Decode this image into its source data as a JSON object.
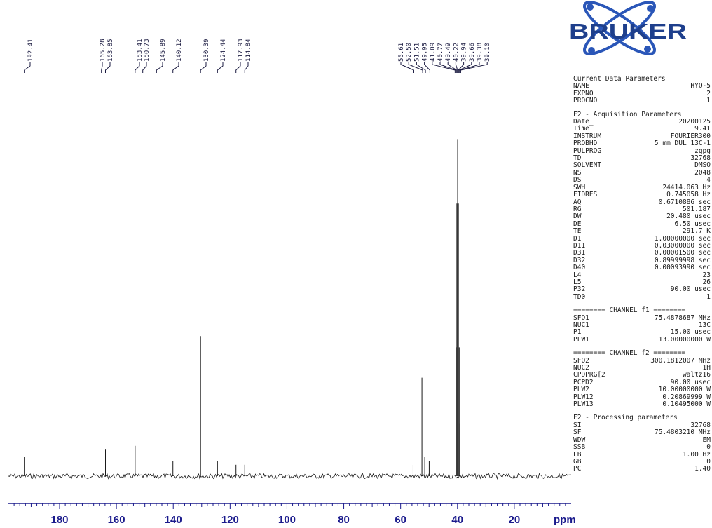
{
  "chart_data": {
    "type": "line",
    "x_unit": "ppm",
    "xlim": [
      198,
      0
    ],
    "x_reversed": true,
    "ticks": [
      180,
      160,
      140,
      120,
      100,
      80,
      60,
      40,
      20
    ],
    "peak_labels": [
      "192.41",
      "165.28",
      "163.85",
      "153.41",
      "150.73",
      "145.89",
      "140.12",
      "130.39",
      "124.44",
      "117.93",
      "114.84",
      "55.61",
      "52.50",
      "51.51",
      "49.95",
      "41.09",
      "40.77",
      "40.49",
      "40.22",
      "39.94",
      "39.66",
      "39.38",
      "39.10"
    ],
    "peaks": [
      {
        "ppm": 192.41,
        "intensity": 0.05
      },
      {
        "ppm": 163.85,
        "intensity": 0.07
      },
      {
        "ppm": 153.41,
        "intensity": 0.08
      },
      {
        "ppm": 140.12,
        "intensity": 0.04
      },
      {
        "ppm": 130.39,
        "intensity": 0.37
      },
      {
        "ppm": 124.44,
        "intensity": 0.04
      },
      {
        "ppm": 117.93,
        "intensity": 0.03
      },
      {
        "ppm": 114.84,
        "intensity": 0.03
      },
      {
        "ppm": 55.61,
        "intensity": 0.03
      },
      {
        "ppm": 52.5,
        "intensity": 0.26
      },
      {
        "ppm": 51.51,
        "intensity": 0.05
      },
      {
        "ppm": 49.95,
        "intensity": 0.04
      },
      {
        "ppm": 40.49,
        "intensity": 0.34
      },
      {
        "ppm": 40.22,
        "intensity": 0.72
      },
      {
        "ppm": 39.94,
        "intensity": 0.89
      },
      {
        "ppm": 39.66,
        "intensity": 0.72
      },
      {
        "ppm": 39.38,
        "intensity": 0.34
      },
      {
        "ppm": 39.1,
        "intensity": 0.14
      }
    ]
  },
  "logo": {
    "text": "BRUKER",
    "color": "#1e3f8c"
  },
  "parameters": {
    "current": {
      "title": "Current Data Parameters",
      "rows": [
        [
          "NAME",
          "HYO-5"
        ],
        [
          "EXPNO",
          "2"
        ],
        [
          "PROCNO",
          "1"
        ]
      ]
    },
    "acquisition": {
      "title": "F2 - Acquisition Parameters",
      "rows": [
        [
          "Date_",
          "20200125"
        ],
        [
          "Time",
          "9.41"
        ],
        [
          "INSTRUM",
          "FOURIER300"
        ],
        [
          "PROBHD",
          "5 mm DUL 13C-1"
        ],
        [
          "PULPROG",
          "zgpg"
        ],
        [
          "TD",
          "32768"
        ],
        [
          "SOLVENT",
          "DMSO"
        ],
        [
          "NS",
          "2048"
        ],
        [
          "DS",
          "4"
        ],
        [
          "SWH",
          "24414.063 Hz"
        ],
        [
          "FIDRES",
          "0.745058 Hz"
        ],
        [
          "AQ",
          "0.6710886 sec"
        ],
        [
          "RG",
          "501.187"
        ],
        [
          "DW",
          "20.480 usec"
        ],
        [
          "DE",
          "6.50 usec"
        ],
        [
          "TE",
          "291.7 K"
        ],
        [
          "D1",
          "1.00000000 sec"
        ],
        [
          "D11",
          "0.03000000 sec"
        ],
        [
          "D31",
          "0.00001500 sec"
        ],
        [
          "D32",
          "0.89999998 sec"
        ],
        [
          "D40",
          "0.00093990 sec"
        ],
        [
          "L4",
          "23"
        ],
        [
          "L5",
          "26"
        ],
        [
          "P32",
          "90.00 usec"
        ],
        [
          "TD0",
          "1"
        ]
      ]
    },
    "channel_f1": {
      "title": "======== CHANNEL f1 ========",
      "rows": [
        [
          "SFO1",
          "75.4878687 MHz"
        ],
        [
          "NUC1",
          "13C"
        ],
        [
          "P1",
          "15.00 usec"
        ],
        [
          "PLW1",
          "13.00000000 W"
        ]
      ]
    },
    "channel_f2": {
      "title": "======== CHANNEL f2 ========",
      "rows": [
        [
          "SFO2",
          "300.1812007 MHz"
        ],
        [
          "NUC2",
          "1H"
        ],
        [
          "CPDPRG[2",
          "waltz16"
        ],
        [
          "PCPD2",
          "90.00 usec"
        ],
        [
          "PLW2",
          "10.00000000 W"
        ],
        [
          "PLW12",
          "0.20869999 W"
        ],
        [
          "PLW13",
          "0.10495000 W"
        ]
      ]
    },
    "processing": {
      "title": "F2 - Processing parameters",
      "rows": [
        [
          "SI",
          "32768"
        ],
        [
          "SF",
          "75.4803210 MHz"
        ],
        [
          "WDW",
          "EM"
        ],
        [
          "SSB",
          "0"
        ],
        [
          "LB",
          "1.00 Hz"
        ],
        [
          "GB",
          "0"
        ],
        [
          "PC",
          "1.40"
        ]
      ]
    }
  }
}
